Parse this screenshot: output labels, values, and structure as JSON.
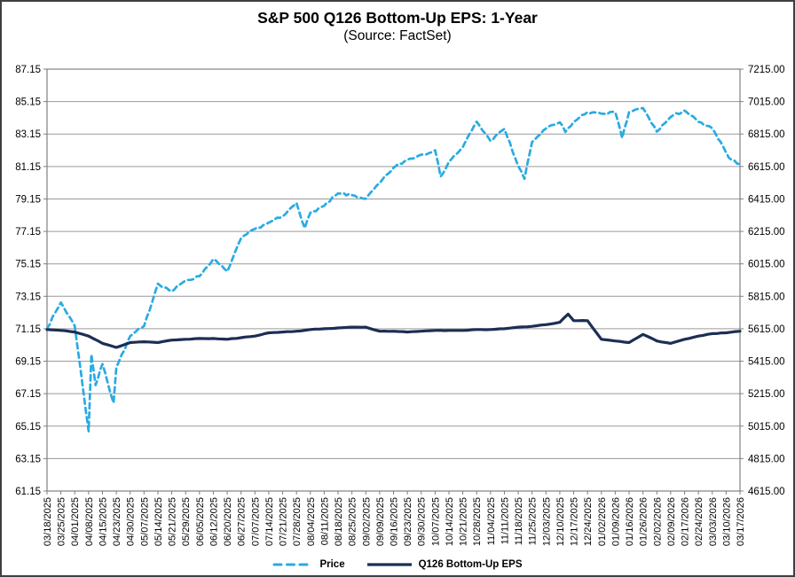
{
  "figure": {
    "title": "S&P 500 Q126 Bottom-Up EPS: 1-Year",
    "subtitle": "(Source: FactSet)"
  },
  "chart_data": {
    "type": "line",
    "title": "S&P 500 Q126 Bottom-Up EPS: 1-Year",
    "subtitle": "(Source: FactSet)",
    "grid": true,
    "legend_position": "bottom",
    "colors": {
      "price": "#29ABE2",
      "eps": "#1C2E54",
      "gridline": "#9A9A9A",
      "plot_border": "#808080",
      "text": "#000000"
    },
    "categories": [
      "03/18/2025",
      "03/25/2025",
      "04/01/2025",
      "04/08/2025",
      "04/15/2025",
      "04/23/2025",
      "04/30/2025",
      "05/07/2025",
      "05/14/2025",
      "05/21/2025",
      "05/29/2025",
      "06/05/2025",
      "06/12/2025",
      "06/20/2025",
      "06/27/2025",
      "07/07/2025",
      "07/14/2025",
      "07/21/2025",
      "07/28/2025",
      "08/04/2025",
      "08/11/2025",
      "08/18/2025",
      "08/25/2025",
      "09/02/2025",
      "09/09/2025",
      "09/16/2025",
      "09/23/2025",
      "09/30/2025",
      "10/07/2025",
      "10/14/2025",
      "10/21/2025",
      "10/28/2025",
      "11/04/2025",
      "11/11/2025",
      "11/18/2025",
      "11/25/2025",
      "12/03/2025",
      "12/10/2025",
      "12/17/2025",
      "12/24/2025",
      "01/02/2026",
      "01/09/2026",
      "01/16/2026",
      "01/26/2026",
      "02/02/2026",
      "02/09/2026",
      "02/17/2026",
      "02/24/2026",
      "03/03/2026",
      "03/10/2026",
      "03/17/2026"
    ],
    "left_axis": {
      "label": "Q126 Bottom-Up EPS",
      "min": 61.15,
      "max": 87.15,
      "step": 2,
      "ticks": [
        "87.15",
        "85.15",
        "83.15",
        "81.15",
        "79.15",
        "77.15",
        "75.15",
        "73.15",
        "71.15",
        "69.15",
        "67.15",
        "65.15",
        "63.15",
        "61.15"
      ]
    },
    "right_axis": {
      "label": "Price",
      "min": 4615.0,
      "max": 7215.0,
      "step": 200,
      "ticks": [
        "7215.00",
        "7015.00",
        "6815.00",
        "6615.00",
        "6415.00",
        "6215.00",
        "6015.00",
        "5815.00",
        "5615.00",
        "5415.00",
        "5215.00",
        "5015.00",
        "4815.00",
        "4615.00"
      ]
    },
    "series": [
      {
        "name": "Price",
        "axis": "right",
        "style": "dashed",
        "color": "#29ABE2",
        "values": [
          5615,
          5777,
          5633,
          4983,
          5397,
          5376,
          5569,
          5631,
          5893,
          5845,
          5912,
          5939,
          6045,
          5968,
          6173,
          6230,
          6269,
          6306,
          6390,
          6330,
          6373,
          6449,
          6439,
          6416,
          6513,
          6607,
          6657,
          6688,
          6715,
          6644,
          6735,
          6891,
          6772,
          6847,
          6617,
          6766,
          6849,
          6887,
          6890,
          6950,
          6940,
          6950,
          6950,
          6975,
          6830,
          6920,
          6960,
          6890,
          6850,
          6700,
          6630
        ],
        "extra_points": [
          {
            "i": 3.2,
            "v": 5457
          },
          {
            "i": 3.5,
            "v": 5268
          },
          {
            "i": 4.4,
            "v": 5275
          },
          {
            "i": 4.8,
            "v": 5158
          },
          {
            "i": 18.6,
            "v": 6235
          },
          {
            "i": 28.4,
            "v": 6553
          },
          {
            "i": 34.45,
            "v": 6539
          },
          {
            "i": 37.4,
            "v": 6828
          },
          {
            "i": 41.5,
            "v": 6790
          },
          {
            "i": 49.4,
            "v": 6655
          }
        ]
      },
      {
        "name": "Q126 Bottom-Up EPS",
        "axis": "left",
        "style": "solid",
        "color": "#1C2E54",
        "values": [
          71.1,
          71.05,
          70.95,
          70.7,
          70.25,
          70.0,
          70.3,
          70.35,
          70.3,
          70.45,
          70.5,
          70.55,
          70.55,
          70.5,
          70.6,
          70.7,
          70.9,
          70.95,
          71.0,
          71.1,
          71.15,
          71.2,
          71.25,
          71.25,
          71.0,
          71.0,
          70.95,
          71.0,
          71.05,
          71.05,
          71.05,
          71.1,
          71.1,
          71.15,
          71.25,
          71.3,
          71.4,
          71.55,
          71.65,
          71.65,
          70.5,
          70.4,
          70.3,
          70.8,
          70.4,
          70.25,
          70.5,
          70.7,
          70.85,
          70.9,
          71.0
        ],
        "extra_points": [
          {
            "i": 37.6,
            "v": 72.05
          }
        ]
      }
    ]
  },
  "legend": {
    "items": [
      {
        "label": "Price"
      },
      {
        "label": "Q126 Bottom-Up EPS"
      }
    ]
  }
}
